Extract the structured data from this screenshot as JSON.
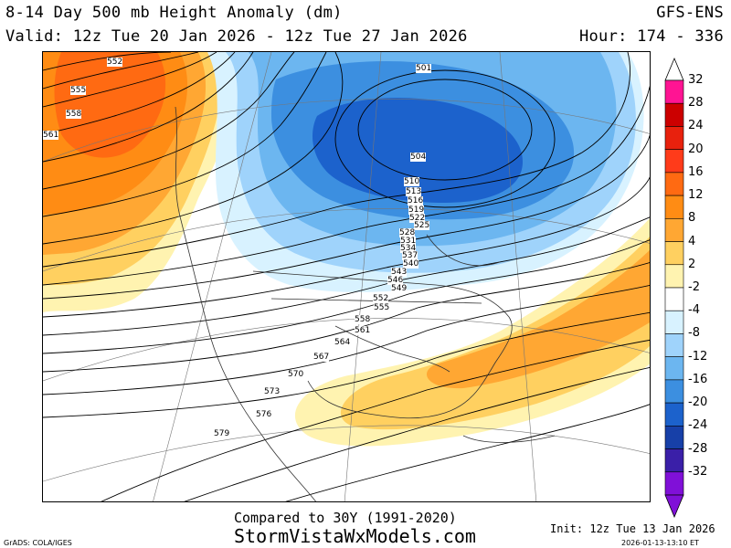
{
  "header": {
    "title": "8-14 Day 500 mb Height Anomaly (dm)",
    "model": "GFS-ENS",
    "valid": "Valid: 12z Tue 20 Jan 2026 - 12z Tue 27 Jan 2026",
    "hour": "Hour: 174 - 336"
  },
  "colorbar": {
    "labels": [
      "32",
      "28",
      "24",
      "20",
      "16",
      "12",
      "8",
      "4",
      "2",
      "-2",
      "-4",
      "-8",
      "-12",
      "-16",
      "-20",
      "-24",
      "-28",
      "-32"
    ],
    "colors": [
      "#ff1493",
      "#cc0000",
      "#e8210d",
      "#ff3b1a",
      "#ff6a12",
      "#ff8c14",
      "#ffa733",
      "#ffd060",
      "#fff3b0",
      "#ffffff",
      "#d8f2ff",
      "#9fd3fb",
      "#6cb6f0",
      "#3c8fe0",
      "#1c62cc",
      "#1740a8",
      "#3a1fa8",
      "#8010d8"
    ]
  },
  "contour_labels": [
    "552",
    "555",
    "558",
    "561",
    "501",
    "504",
    "510",
    "513",
    "516",
    "519",
    "522",
    "525",
    "528",
    "531",
    "534",
    "537",
    "540",
    "543",
    "546",
    "549",
    "552",
    "555",
    "558",
    "561",
    "564",
    "567",
    "570",
    "573",
    "576",
    "579"
  ],
  "footer": {
    "compared": "Compared to 30Y (1991-2020)",
    "site": "StormVistaWxModels.com",
    "init": "Init: 12z Tue 13 Jan 2026",
    "grads": "GrADS: COLA/IGES",
    "timestamp": "2026-01-13-13:10 ET"
  }
}
